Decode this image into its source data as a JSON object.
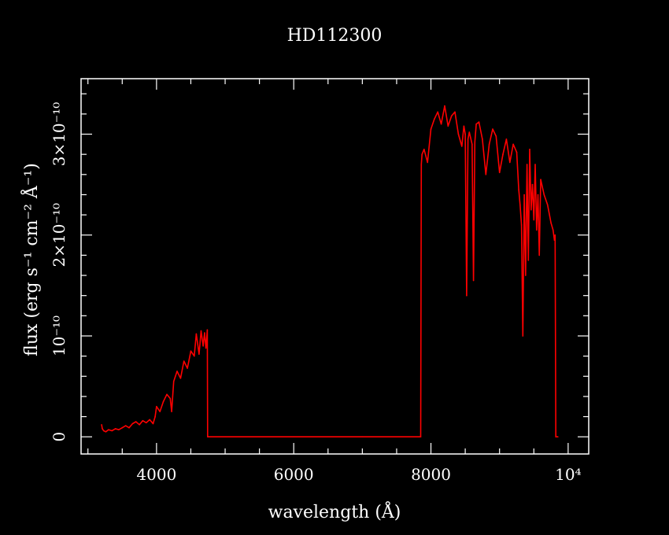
{
  "chart_data": {
    "type": "line",
    "title": "HD112300",
    "xlabel": "wavelength (Å)",
    "ylabel": "flux (erg s⁻¹ cm⁻² Å⁻¹)",
    "xlim": [
      2900,
      10300
    ],
    "ylim": [
      -1.7e-11,
      3.55e-10
    ],
    "x_ticks": [
      {
        "value": 4000,
        "label": "4000"
      },
      {
        "value": 6000,
        "label": "6000"
      },
      {
        "value": 8000,
        "label": "8000"
      },
      {
        "value": 10000,
        "label": "10⁴"
      }
    ],
    "y_ticks": [
      {
        "value": 0,
        "label": "0"
      },
      {
        "value": 1e-10,
        "label": "10⁻¹⁰"
      },
      {
        "value": 2e-10,
        "label": "2×10⁻¹⁰"
      },
      {
        "value": 3e-10,
        "label": "3×10⁻¹⁰"
      }
    ],
    "grid": false,
    "series": [
      {
        "color": "#ff0000",
        "x": [
          3200,
          3210,
          3230,
          3260,
          3300,
          3350,
          3400,
          3450,
          3500,
          3550,
          3600,
          3650,
          3700,
          3750,
          3800,
          3850,
          3900,
          3950,
          3980,
          4000,
          4050,
          4100,
          4150,
          4200,
          4220,
          4250,
          4300,
          4350,
          4400,
          4450,
          4500,
          4550,
          4580,
          4600,
          4620,
          4650,
          4680,
          4700,
          4720,
          4740,
          4745,
          4750,
          5000,
          6000,
          7000,
          7850,
          7860,
          7870,
          7900,
          7950,
          8000,
          8050,
          8100,
          8150,
          8200,
          8250,
          8300,
          8350,
          8400,
          8450,
          8480,
          8500,
          8520,
          8540,
          8560,
          8600,
          8620,
          8640,
          8660,
          8700,
          8750,
          8800,
          8850,
          8900,
          8950,
          9000,
          9050,
          9100,
          9150,
          9200,
          9250,
          9280,
          9300,
          9320,
          9340,
          9360,
          9380,
          9400,
          9420,
          9440,
          9460,
          9480,
          9500,
          9520,
          9540,
          9560,
          9580,
          9600,
          9650,
          9700,
          9750,
          9780,
          9800,
          9810,
          9820,
          9850
        ],
        "y": [
          1.2e-11,
          8e-12,
          6e-12,
          5e-12,
          7e-12,
          6e-12,
          8e-12,
          7e-12,
          9e-12,
          1.1e-11,
          9e-12,
          1.3e-11,
          1.5e-11,
          1.2e-11,
          1.6e-11,
          1.4e-11,
          1.7e-11,
          1.3e-11,
          2e-11,
          3e-11,
          2.5e-11,
          3.5e-11,
          4.2e-11,
          3.8e-11,
          2.5e-11,
          5.5e-11,
          6.5e-11,
          5.8e-11,
          7.5e-11,
          6.8e-11,
          8.5e-11,
          8e-11,
          1.02e-10,
          9.2e-11,
          8.2e-11,
          1.05e-10,
          9e-11,
          1.03e-10,
          8.8e-11,
          1.06e-10,
          0,
          0,
          0,
          0,
          0,
          0,
          2.7e-10,
          2.8e-10,
          2.85e-10,
          2.72e-10,
          3.05e-10,
          3.15e-10,
          3.22e-10,
          3.1e-10,
          3.28e-10,
          3.08e-10,
          3.18e-10,
          3.22e-10,
          3e-10,
          2.88e-10,
          3.08e-10,
          3e-10,
          1.4e-10,
          2.95e-10,
          3.02e-10,
          2.9e-10,
          1.55e-10,
          2.92e-10,
          3.1e-10,
          3.12e-10,
          2.95e-10,
          2.6e-10,
          2.9e-10,
          3.05e-10,
          2.98e-10,
          2.62e-10,
          2.8e-10,
          2.95e-10,
          2.72e-10,
          2.9e-10,
          2.82e-10,
          2.45e-10,
          2.3e-10,
          2.1e-10,
          1e-10,
          2.4e-10,
          1.6e-10,
          2.7e-10,
          1.75e-10,
          2.85e-10,
          2.25e-10,
          2.5e-10,
          2.15e-10,
          2.7e-10,
          2.05e-10,
          2.4e-10,
          1.8e-10,
          2.55e-10,
          2.4e-10,
          2.3e-10,
          2.12e-10,
          2.05e-10,
          1.95e-10,
          2e-10,
          0,
          0
        ]
      }
    ]
  }
}
